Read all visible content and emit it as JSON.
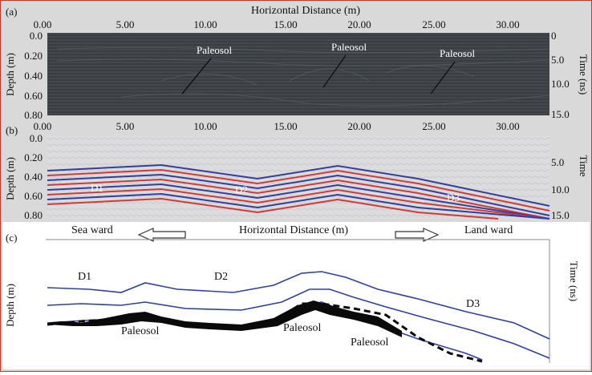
{
  "panel_a": {
    "label": "(a)",
    "top_axis_title": "Horizontal Distance (m)",
    "x_ticks": [
      "0.00",
      "5.00",
      "10.00",
      "15.00",
      "20.00",
      "25.00",
      "30.00"
    ],
    "depth_label": "Depth (m)",
    "depth_ticks": [
      "0.0",
      "0.20",
      "0.40",
      "0.60",
      "0.80"
    ],
    "time_label": "Time (ns)",
    "time_ticks": [
      "0",
      "5.0",
      "10.0",
      "15.0"
    ],
    "annotations": [
      "Paleosol",
      "Paleosol",
      "Paleosol"
    ]
  },
  "panel_b": {
    "label": "(b)",
    "x_ticks": [
      "0.00",
      "5.00",
      "10.00",
      "15.00",
      "20.00",
      "25.00",
      "30.00"
    ],
    "depth_label": "Depth (m)",
    "depth_ticks": [
      "0.0",
      "0.20",
      "0.40",
      "0.60",
      "0.80"
    ],
    "time_label": "Time",
    "time_ticks": [
      "5.0",
      "10.0",
      "15.0"
    ],
    "annotations": [
      "D1",
      "D2",
      "D3"
    ]
  },
  "panel_c": {
    "label": "(c)",
    "left_direction": "Sea ward",
    "center_title": "Horizontal Distance (m)",
    "right_direction": "Land ward",
    "depth_label": "Depth (m)",
    "time_label": "Time (ns)",
    "units": [
      "D1",
      "D2",
      "D3"
    ],
    "paleosol_labels": [
      "Paleosol",
      "Paleosol",
      "Paleosol"
    ]
  },
  "colors": {
    "frame": "#c0392b",
    "radar_bg": "#3e4347",
    "panel_b_bg": "#dcdcdc",
    "horizon_blue": "#2f3fa0",
    "horizon_red": "#d23a3a",
    "paleosol_black": "#0a0a0a"
  }
}
